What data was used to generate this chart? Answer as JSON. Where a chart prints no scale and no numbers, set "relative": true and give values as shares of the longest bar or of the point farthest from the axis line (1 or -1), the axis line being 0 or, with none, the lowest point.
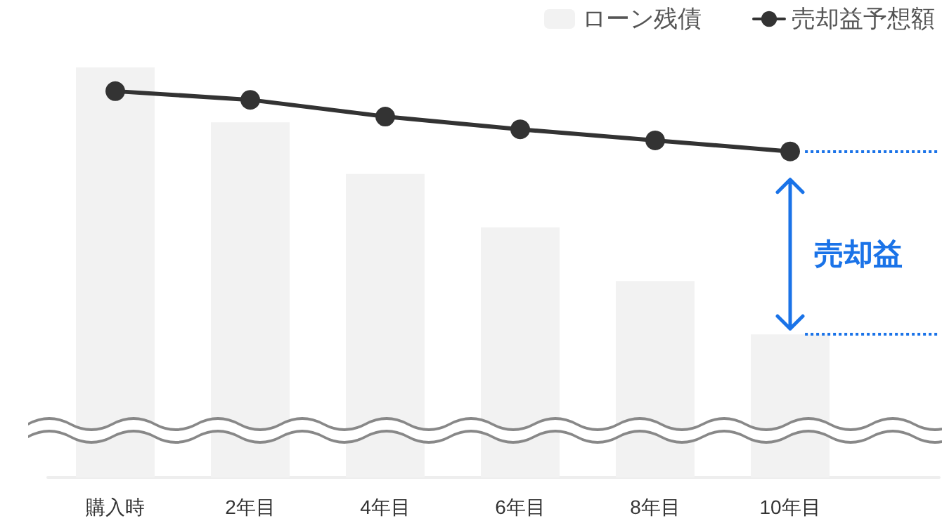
{
  "chart_data": {
    "type": "bar",
    "relative": true,
    "categories": [
      "購入時",
      "2年目",
      "4年目",
      "6年目",
      "8年目",
      "10年目"
    ],
    "series": [
      {
        "name": "ローン残債",
        "color": "#f2f2f2",
        "values": [
          1,
          0.866,
          0.74,
          0.61,
          0.479,
          0.349
        ]
      },
      {
        "name": "売却益予想額",
        "type": "line",
        "color": "#333333",
        "values": [
          0.942,
          0.921,
          0.88,
          0.849,
          0.822,
          0.795
        ]
      }
    ],
    "ref_lines": [
      {
        "axis": "y",
        "value": 0.795,
        "color": "#1a73e8",
        "line_style": "dotted"
      },
      {
        "axis": "y",
        "value": 0.349,
        "color": "#1a73e8",
        "line_style": "dotted"
      }
    ],
    "annotations": [
      "売却益"
    ],
    "legend": "top right",
    "marker": "circle",
    "line_style": "solid",
    "grid": false
  }
}
